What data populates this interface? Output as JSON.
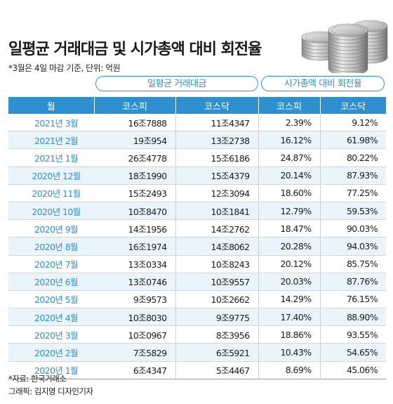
{
  "title": "일평균 거래대금 및 시가총액 대비 회전율",
  "note": "*3월은 4일 마감 기준, 단위: 억원",
  "groups": {
    "trading": "일평균 거래대금",
    "turnover": "시가총액 대비 회전율"
  },
  "columns": [
    "월",
    "코스피",
    "코스닥",
    "코스피",
    "코스닥"
  ],
  "source": "*자료: 한국거래소",
  "credit": "그래픽: 김지영 디자인기자",
  "chart_data": {
    "type": "table",
    "title": "일평균 거래대금 및 시가총액 대비 회전율",
    "rows": [
      {
        "month": "2021년 3월",
        "kospi_amt": "16조7888",
        "kosdaq_amt": "11조4347",
        "kospi_rate": "2.39%",
        "kosdaq_rate": "9.12%"
      },
      {
        "month": "2021년 2월",
        "kospi_amt": "19조954",
        "kosdaq_amt": "13조2738",
        "kospi_rate": "16.12%",
        "kosdaq_rate": "61.98%"
      },
      {
        "month": "2021년 1월",
        "kospi_amt": "26조4778",
        "kosdaq_amt": "15조6186",
        "kospi_rate": "24.87%",
        "kosdaq_rate": "80.22%"
      },
      {
        "month": "2020년 12월",
        "kospi_amt": "18조1990",
        "kosdaq_amt": "15조4379",
        "kospi_rate": "20.14%",
        "kosdaq_rate": "87.93%"
      },
      {
        "month": "2020년 11월",
        "kospi_amt": "15조2493",
        "kosdaq_amt": "12조3094",
        "kospi_rate": "18.60%",
        "kosdaq_rate": "77.25%"
      },
      {
        "month": "2020년 10월",
        "kospi_amt": "10조8470",
        "kosdaq_amt": "10조1841",
        "kospi_rate": "12.79%",
        "kosdaq_rate": "59.53%"
      },
      {
        "month": "2020년 9월",
        "kospi_amt": "14조1956",
        "kosdaq_amt": "14조2762",
        "kospi_rate": "18.47%",
        "kosdaq_rate": "90.03%"
      },
      {
        "month": "2020년 8월",
        "kospi_amt": "16조1974",
        "kosdaq_amt": "14조8062",
        "kospi_rate": "20.28%",
        "kosdaq_rate": "94.03%"
      },
      {
        "month": "2020년 7월",
        "kospi_amt": "13조0334",
        "kosdaq_amt": "10조8243",
        "kospi_rate": "20.12%",
        "kosdaq_rate": "85.75%"
      },
      {
        "month": "2020년 6월",
        "kospi_amt": "13조0746",
        "kosdaq_amt": "10조9557",
        "kospi_rate": "20.03%",
        "kosdaq_rate": "87.76%"
      },
      {
        "month": "2020년 5월",
        "kospi_amt": "9조9573",
        "kosdaq_amt": "10조2662",
        "kospi_rate": "14.29%",
        "kosdaq_rate": "76.15%"
      },
      {
        "month": "2020년 4월",
        "kospi_amt": "10조8030",
        "kosdaq_amt": "9조9775",
        "kospi_rate": "17.40%",
        "kosdaq_rate": "88.90%"
      },
      {
        "month": "2020년 3월",
        "kospi_amt": "10조0967",
        "kosdaq_amt": "8조3956",
        "kospi_rate": "18.86%",
        "kosdaq_rate": "93.55%"
      },
      {
        "month": "2020년 2월",
        "kospi_amt": "7조5829",
        "kosdaq_amt": "6조5921",
        "kospi_rate": "10.43%",
        "kosdaq_rate": "54.65%"
      },
      {
        "month": "2020년 1월",
        "kospi_amt": "6조4347",
        "kosdaq_amt": "5조4467",
        "kospi_rate": "8.69%",
        "kosdaq_rate": "45.06%"
      }
    ]
  }
}
